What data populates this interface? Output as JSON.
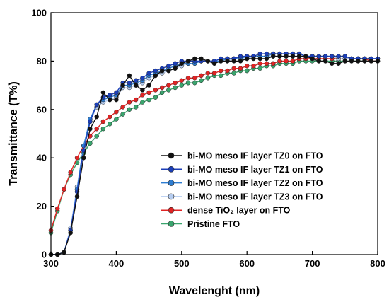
{
  "chart_data": {
    "type": "line",
    "xlabel": "Wavelenght (nm)",
    "ylabel": "Transmittance (T%)",
    "xlim": [
      300,
      800
    ],
    "ylim": [
      0,
      100
    ],
    "xticks": [
      300,
      400,
      500,
      600,
      700,
      800
    ],
    "yticks": [
      0,
      20,
      40,
      60,
      80,
      100
    ],
    "legend_position": "center-right",
    "series": [
      {
        "name": "bi-MO meso IF layer TZ0 on FTO",
        "color": "#111111",
        "points": [
          [
            300,
            0
          ],
          [
            310,
            0
          ],
          [
            320,
            1
          ],
          [
            330,
            9
          ],
          [
            340,
            24
          ],
          [
            350,
            40
          ],
          [
            360,
            52
          ],
          [
            370,
            57
          ],
          [
            380,
            67
          ],
          [
            390,
            64
          ],
          [
            400,
            64
          ],
          [
            410,
            70
          ],
          [
            420,
            74
          ],
          [
            430,
            70
          ],
          [
            440,
            68
          ],
          [
            450,
            70
          ],
          [
            460,
            74
          ],
          [
            470,
            76
          ],
          [
            480,
            76
          ],
          [
            490,
            77
          ],
          [
            500,
            79
          ],
          [
            510,
            80
          ],
          [
            520,
            81
          ],
          [
            530,
            81
          ],
          [
            540,
            80
          ],
          [
            550,
            79
          ],
          [
            560,
            80
          ],
          [
            570,
            80
          ],
          [
            580,
            80
          ],
          [
            590,
            80
          ],
          [
            600,
            81
          ],
          [
            610,
            81
          ],
          [
            620,
            81
          ],
          [
            630,
            81
          ],
          [
            640,
            82
          ],
          [
            650,
            82
          ],
          [
            660,
            82
          ],
          [
            670,
            82
          ],
          [
            680,
            82
          ],
          [
            690,
            82
          ],
          [
            700,
            81
          ],
          [
            710,
            80
          ],
          [
            720,
            80
          ],
          [
            730,
            79
          ],
          [
            740,
            79
          ],
          [
            750,
            80
          ],
          [
            760,
            80
          ],
          [
            770,
            80
          ],
          [
            780,
            80
          ],
          [
            790,
            80
          ],
          [
            800,
            80
          ]
        ]
      },
      {
        "name": "bi-MO meso IF layer TZ1 on FTO",
        "color": "#1c3fb8",
        "points": [
          [
            300,
            0
          ],
          [
            310,
            0
          ],
          [
            320,
            1
          ],
          [
            330,
            10
          ],
          [
            340,
            26
          ],
          [
            350,
            43
          ],
          [
            360,
            55
          ],
          [
            370,
            62
          ],
          [
            380,
            65
          ],
          [
            390,
            66
          ],
          [
            400,
            67
          ],
          [
            410,
            71
          ],
          [
            420,
            71
          ],
          [
            430,
            72
          ],
          [
            440,
            73
          ],
          [
            450,
            75
          ],
          [
            460,
            76
          ],
          [
            470,
            77
          ],
          [
            480,
            78
          ],
          [
            490,
            79
          ],
          [
            500,
            80
          ],
          [
            510,
            80
          ],
          [
            520,
            80
          ],
          [
            530,
            80
          ],
          [
            540,
            80
          ],
          [
            550,
            80
          ],
          [
            560,
            81
          ],
          [
            570,
            81
          ],
          [
            580,
            81
          ],
          [
            590,
            82
          ],
          [
            600,
            82
          ],
          [
            610,
            82
          ],
          [
            620,
            83
          ],
          [
            630,
            83
          ],
          [
            640,
            83
          ],
          [
            650,
            83
          ],
          [
            660,
            83
          ],
          [
            670,
            83
          ],
          [
            680,
            83
          ],
          [
            690,
            82
          ],
          [
            700,
            82
          ],
          [
            710,
            82
          ],
          [
            720,
            82
          ],
          [
            730,
            82
          ],
          [
            740,
            82
          ],
          [
            750,
            82
          ],
          [
            760,
            81
          ],
          [
            770,
            81
          ],
          [
            780,
            81
          ],
          [
            790,
            81
          ],
          [
            800,
            81
          ]
        ]
      },
      {
        "name": "bi-MO meso IF layer TZ2 on FTO",
        "color": "#2e7dd1",
        "points": [
          [
            300,
            0
          ],
          [
            310,
            0
          ],
          [
            320,
            1
          ],
          [
            330,
            10
          ],
          [
            340,
            27
          ],
          [
            350,
            45
          ],
          [
            360,
            56
          ],
          [
            370,
            62
          ],
          [
            380,
            64
          ],
          [
            390,
            65
          ],
          [
            400,
            66
          ],
          [
            410,
            70
          ],
          [
            420,
            70
          ],
          [
            430,
            71
          ],
          [
            440,
            72
          ],
          [
            450,
            74
          ],
          [
            460,
            75
          ],
          [
            470,
            76
          ],
          [
            480,
            77
          ],
          [
            490,
            78
          ],
          [
            500,
            79
          ],
          [
            510,
            79
          ],
          [
            520,
            79
          ],
          [
            530,
            80
          ],
          [
            540,
            80
          ],
          [
            550,
            80
          ],
          [
            560,
            80
          ],
          [
            570,
            81
          ],
          [
            580,
            81
          ],
          [
            590,
            81
          ],
          [
            600,
            82
          ],
          [
            610,
            82
          ],
          [
            620,
            82
          ],
          [
            630,
            82
          ],
          [
            640,
            83
          ],
          [
            650,
            83
          ],
          [
            660,
            83
          ],
          [
            670,
            83
          ],
          [
            680,
            83
          ],
          [
            690,
            82
          ],
          [
            700,
            82
          ],
          [
            710,
            82
          ],
          [
            720,
            82
          ],
          [
            730,
            82
          ],
          [
            740,
            82
          ],
          [
            750,
            82
          ],
          [
            760,
            81
          ],
          [
            770,
            81
          ],
          [
            780,
            81
          ],
          [
            790,
            81
          ],
          [
            800,
            81
          ]
        ]
      },
      {
        "name": "bi-MO meso IF layer TZ3 on FTO",
        "color": "#b6cdf0",
        "points": [
          [
            300,
            0
          ],
          [
            310,
            0
          ],
          [
            320,
            1
          ],
          [
            330,
            11
          ],
          [
            340,
            28
          ],
          [
            350,
            45
          ],
          [
            360,
            55
          ],
          [
            370,
            61
          ],
          [
            380,
            63
          ],
          [
            390,
            64
          ],
          [
            400,
            65
          ],
          [
            410,
            69
          ],
          [
            420,
            69
          ],
          [
            430,
            70
          ],
          [
            440,
            71
          ],
          [
            450,
            73
          ],
          [
            460,
            74
          ],
          [
            470,
            75
          ],
          [
            480,
            76
          ],
          [
            490,
            77
          ],
          [
            500,
            78
          ],
          [
            510,
            79
          ],
          [
            520,
            79
          ],
          [
            530,
            80
          ],
          [
            540,
            80
          ],
          [
            550,
            80
          ],
          [
            560,
            80
          ],
          [
            570,
            80
          ],
          [
            580,
            81
          ],
          [
            590,
            81
          ],
          [
            600,
            81
          ],
          [
            610,
            82
          ],
          [
            620,
            82
          ],
          [
            630,
            82
          ],
          [
            640,
            82
          ],
          [
            650,
            82
          ],
          [
            660,
            82
          ],
          [
            670,
            82
          ],
          [
            680,
            82
          ],
          [
            690,
            82
          ],
          [
            700,
            82
          ],
          [
            710,
            82
          ],
          [
            720,
            82
          ],
          [
            730,
            82
          ],
          [
            740,
            81
          ],
          [
            750,
            81
          ],
          [
            760,
            81
          ],
          [
            770,
            81
          ],
          [
            780,
            81
          ],
          [
            790,
            81
          ],
          [
            800,
            81
          ]
        ]
      },
      {
        "name": "dense TiO₂ layer on FTO",
        "color": "#e02424",
        "points": [
          [
            300,
            10
          ],
          [
            310,
            19
          ],
          [
            320,
            27
          ],
          [
            330,
            34
          ],
          [
            340,
            40
          ],
          [
            350,
            45
          ],
          [
            360,
            49
          ],
          [
            370,
            52
          ],
          [
            380,
            55
          ],
          [
            390,
            57
          ],
          [
            400,
            59
          ],
          [
            410,
            61
          ],
          [
            420,
            63
          ],
          [
            430,
            64
          ],
          [
            440,
            66
          ],
          [
            450,
            67
          ],
          [
            460,
            68
          ],
          [
            470,
            69
          ],
          [
            480,
            70
          ],
          [
            490,
            71
          ],
          [
            500,
            72
          ],
          [
            510,
            73
          ],
          [
            520,
            73
          ],
          [
            530,
            74
          ],
          [
            540,
            75
          ],
          [
            550,
            75
          ],
          [
            560,
            76
          ],
          [
            570,
            76
          ],
          [
            580,
            77
          ],
          [
            590,
            77
          ],
          [
            600,
            78
          ],
          [
            610,
            78
          ],
          [
            620,
            79
          ],
          [
            630,
            79
          ],
          [
            640,
            79
          ],
          [
            650,
            80
          ],
          [
            660,
            80
          ],
          [
            670,
            80
          ],
          [
            680,
            81
          ],
          [
            690,
            81
          ],
          [
            700,
            81
          ],
          [
            710,
            81
          ],
          [
            720,
            81
          ],
          [
            730,
            81
          ],
          [
            740,
            81
          ],
          [
            750,
            81
          ],
          [
            760,
            81
          ],
          [
            770,
            81
          ],
          [
            780,
            81
          ],
          [
            790,
            80
          ],
          [
            800,
            80
          ]
        ]
      },
      {
        "name": "Pristine FTO",
        "color": "#3aa56e",
        "points": [
          [
            300,
            9
          ],
          [
            310,
            18
          ],
          [
            320,
            27
          ],
          [
            330,
            33
          ],
          [
            340,
            38
          ],
          [
            350,
            42
          ],
          [
            360,
            46
          ],
          [
            370,
            49
          ],
          [
            380,
            52
          ],
          [
            390,
            54
          ],
          [
            400,
            56
          ],
          [
            410,
            58
          ],
          [
            420,
            60
          ],
          [
            430,
            61
          ],
          [
            440,
            63
          ],
          [
            450,
            64
          ],
          [
            460,
            65
          ],
          [
            470,
            67
          ],
          [
            480,
            68
          ],
          [
            490,
            69
          ],
          [
            500,
            70
          ],
          [
            510,
            71
          ],
          [
            520,
            71
          ],
          [
            530,
            72
          ],
          [
            540,
            73
          ],
          [
            550,
            74
          ],
          [
            560,
            74
          ],
          [
            570,
            75
          ],
          [
            580,
            75
          ],
          [
            590,
            76
          ],
          [
            600,
            76
          ],
          [
            610,
            77
          ],
          [
            620,
            77
          ],
          [
            630,
            78
          ],
          [
            640,
            78
          ],
          [
            650,
            79
          ],
          [
            660,
            79
          ],
          [
            670,
            79
          ],
          [
            680,
            80
          ],
          [
            690,
            80
          ],
          [
            700,
            80
          ],
          [
            710,
            80
          ],
          [
            720,
            80
          ],
          [
            730,
            80
          ],
          [
            740,
            80
          ],
          [
            750,
            80
          ],
          [
            760,
            80
          ],
          [
            770,
            80
          ],
          [
            780,
            80
          ],
          [
            790,
            80
          ],
          [
            800,
            80
          ]
        ]
      }
    ]
  }
}
